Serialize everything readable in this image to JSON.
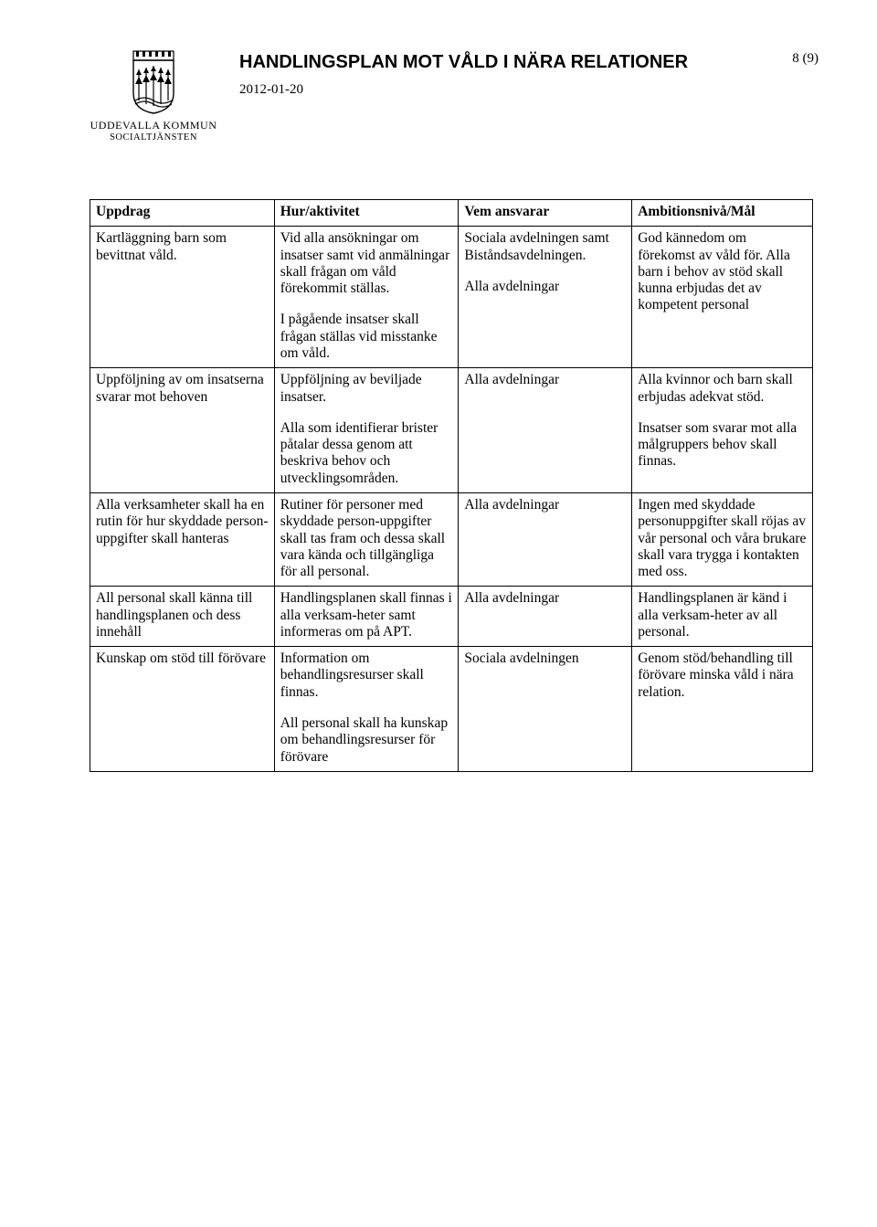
{
  "header": {
    "org_name": "UDDEVALLA KOMMUN",
    "org_sub": "SOCIALTJÄNSTEN",
    "title": "HANDLINGSPLAN MOT VÅLD I NÄRA RELATIONER",
    "date": "2012-01-20",
    "page": "8 (9)"
  },
  "table": {
    "headers": [
      "Uppdrag",
      "Hur/aktivitet",
      "Vem ansvarar",
      "Ambitionsnivå/Mål"
    ],
    "rows": [
      {
        "uppdrag": [
          "Kartläggning barn som bevittnat våld."
        ],
        "hur": [
          "Vid alla ansökningar om insatser samt vid anmälningar skall frågan om våld förekommit ställas.",
          "I pågående insatser skall frågan ställas vid misstanke om våld."
        ],
        "vem": [
          "Sociala avdelningen samt Biståndsavdelningen.",
          "Alla avdelningar"
        ],
        "mal": [
          "God kännedom om förekomst av våld för. Alla barn i behov av stöd skall kunna erbjudas det av kompetent personal"
        ]
      },
      {
        "uppdrag": [
          "Uppföljning av om insatserna svarar mot behoven"
        ],
        "hur": [
          "Uppföljning av beviljade insatser.",
          "Alla som identifierar brister påtalar dessa genom att beskriva behov och utvecklingsområden."
        ],
        "vem": [
          "Alla avdelningar"
        ],
        "mal": [
          "Alla kvinnor och barn skall erbjudas adekvat stöd.",
          "Insatser som svarar mot alla målgruppers behov skall finnas."
        ]
      },
      {
        "uppdrag": [
          "Alla verksamheter skall ha en rutin för hur skyddade person-uppgifter skall hanteras"
        ],
        "hur": [
          "Rutiner för personer med skyddade person-uppgifter skall tas fram och dessa skall vara kända och tillgängliga för all personal."
        ],
        "vem": [
          "Alla avdelningar"
        ],
        "mal": [
          "Ingen med skyddade personuppgifter skall röjas av vår personal och våra brukare skall vara trygga i kontakten med oss."
        ]
      },
      {
        "uppdrag": [
          "All personal skall känna till handlingsplanen och dess innehåll"
        ],
        "hur": [
          "Handlingsplanen skall finnas i alla verksam-heter samt informeras om på APT."
        ],
        "vem": [
          "Alla avdelningar"
        ],
        "mal": [
          "Handlingsplanen är känd i alla verksam-heter av all personal."
        ]
      },
      {
        "uppdrag": [
          "Kunskap om stöd till förövare"
        ],
        "hur": [
          "Information om behandlingsresurser skall finnas.",
          "All personal skall ha kunskap om behandlingsresurser för förövare"
        ],
        "vem": [
          "Sociala avdelningen"
        ],
        "mal": [
          "Genom stöd/behandling till förövare minska våld i nära relation."
        ]
      }
    ]
  },
  "colors": {
    "text": "#000000",
    "background": "#ffffff",
    "border": "#000000"
  }
}
